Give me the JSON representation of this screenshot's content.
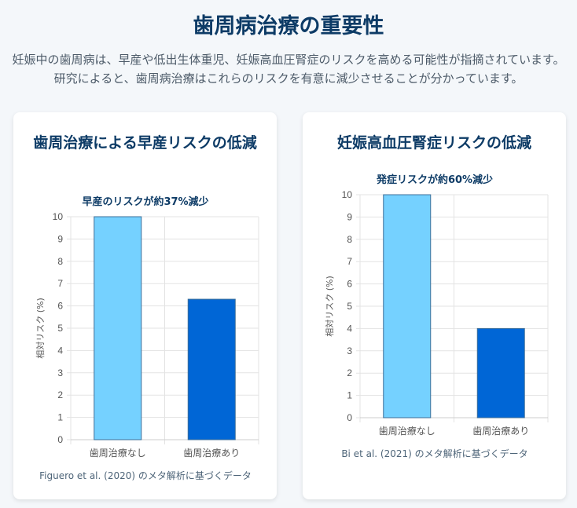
{
  "header": {
    "title": "歯周病治療の重要性",
    "intro": "妊娠中の歯周病は、早産や低出生体重児、妊娠高血圧腎症のリスクを高める可能性が指摘されています。研究によると、歯周病治療はこれらのリスクを有意に減少させることが分かっています。"
  },
  "colors": {
    "no_treatment": "#75d1ff",
    "treatment": "#0066d6",
    "title": "#0d3b66"
  },
  "chart_data": [
    {
      "type": "bar",
      "card_title": "歯周治療による早産リスクの低減",
      "title": "早産のリスクが約37%減少",
      "ylabel": "相対リスク (%)",
      "xlabel": "",
      "categories": [
        "歯周治療なし",
        "歯周治療あり"
      ],
      "values": [
        10,
        6.3
      ],
      "ylim": [
        0,
        10
      ],
      "yticks": [
        "0",
        "1",
        "2",
        "3",
        "4",
        "5",
        "6",
        "7",
        "8",
        "9",
        "10"
      ],
      "grid": true,
      "source": "Figuero et al. (2020) のメタ解析に基づくデータ"
    },
    {
      "type": "bar",
      "card_title": "妊娠高血圧腎症リスクの低減",
      "title": "発症リスクが約60%減少",
      "ylabel": "相対リスク (%)",
      "xlabel": "",
      "categories": [
        "歯周治療なし",
        "歯周治療あり"
      ],
      "values": [
        10,
        4
      ],
      "ylim": [
        0,
        10
      ],
      "yticks": [
        "0",
        "1",
        "2",
        "3",
        "4",
        "5",
        "6",
        "7",
        "8",
        "9",
        "10"
      ],
      "grid": true,
      "source": "Bi et al. (2021) のメタ解析に基づくデータ"
    }
  ]
}
